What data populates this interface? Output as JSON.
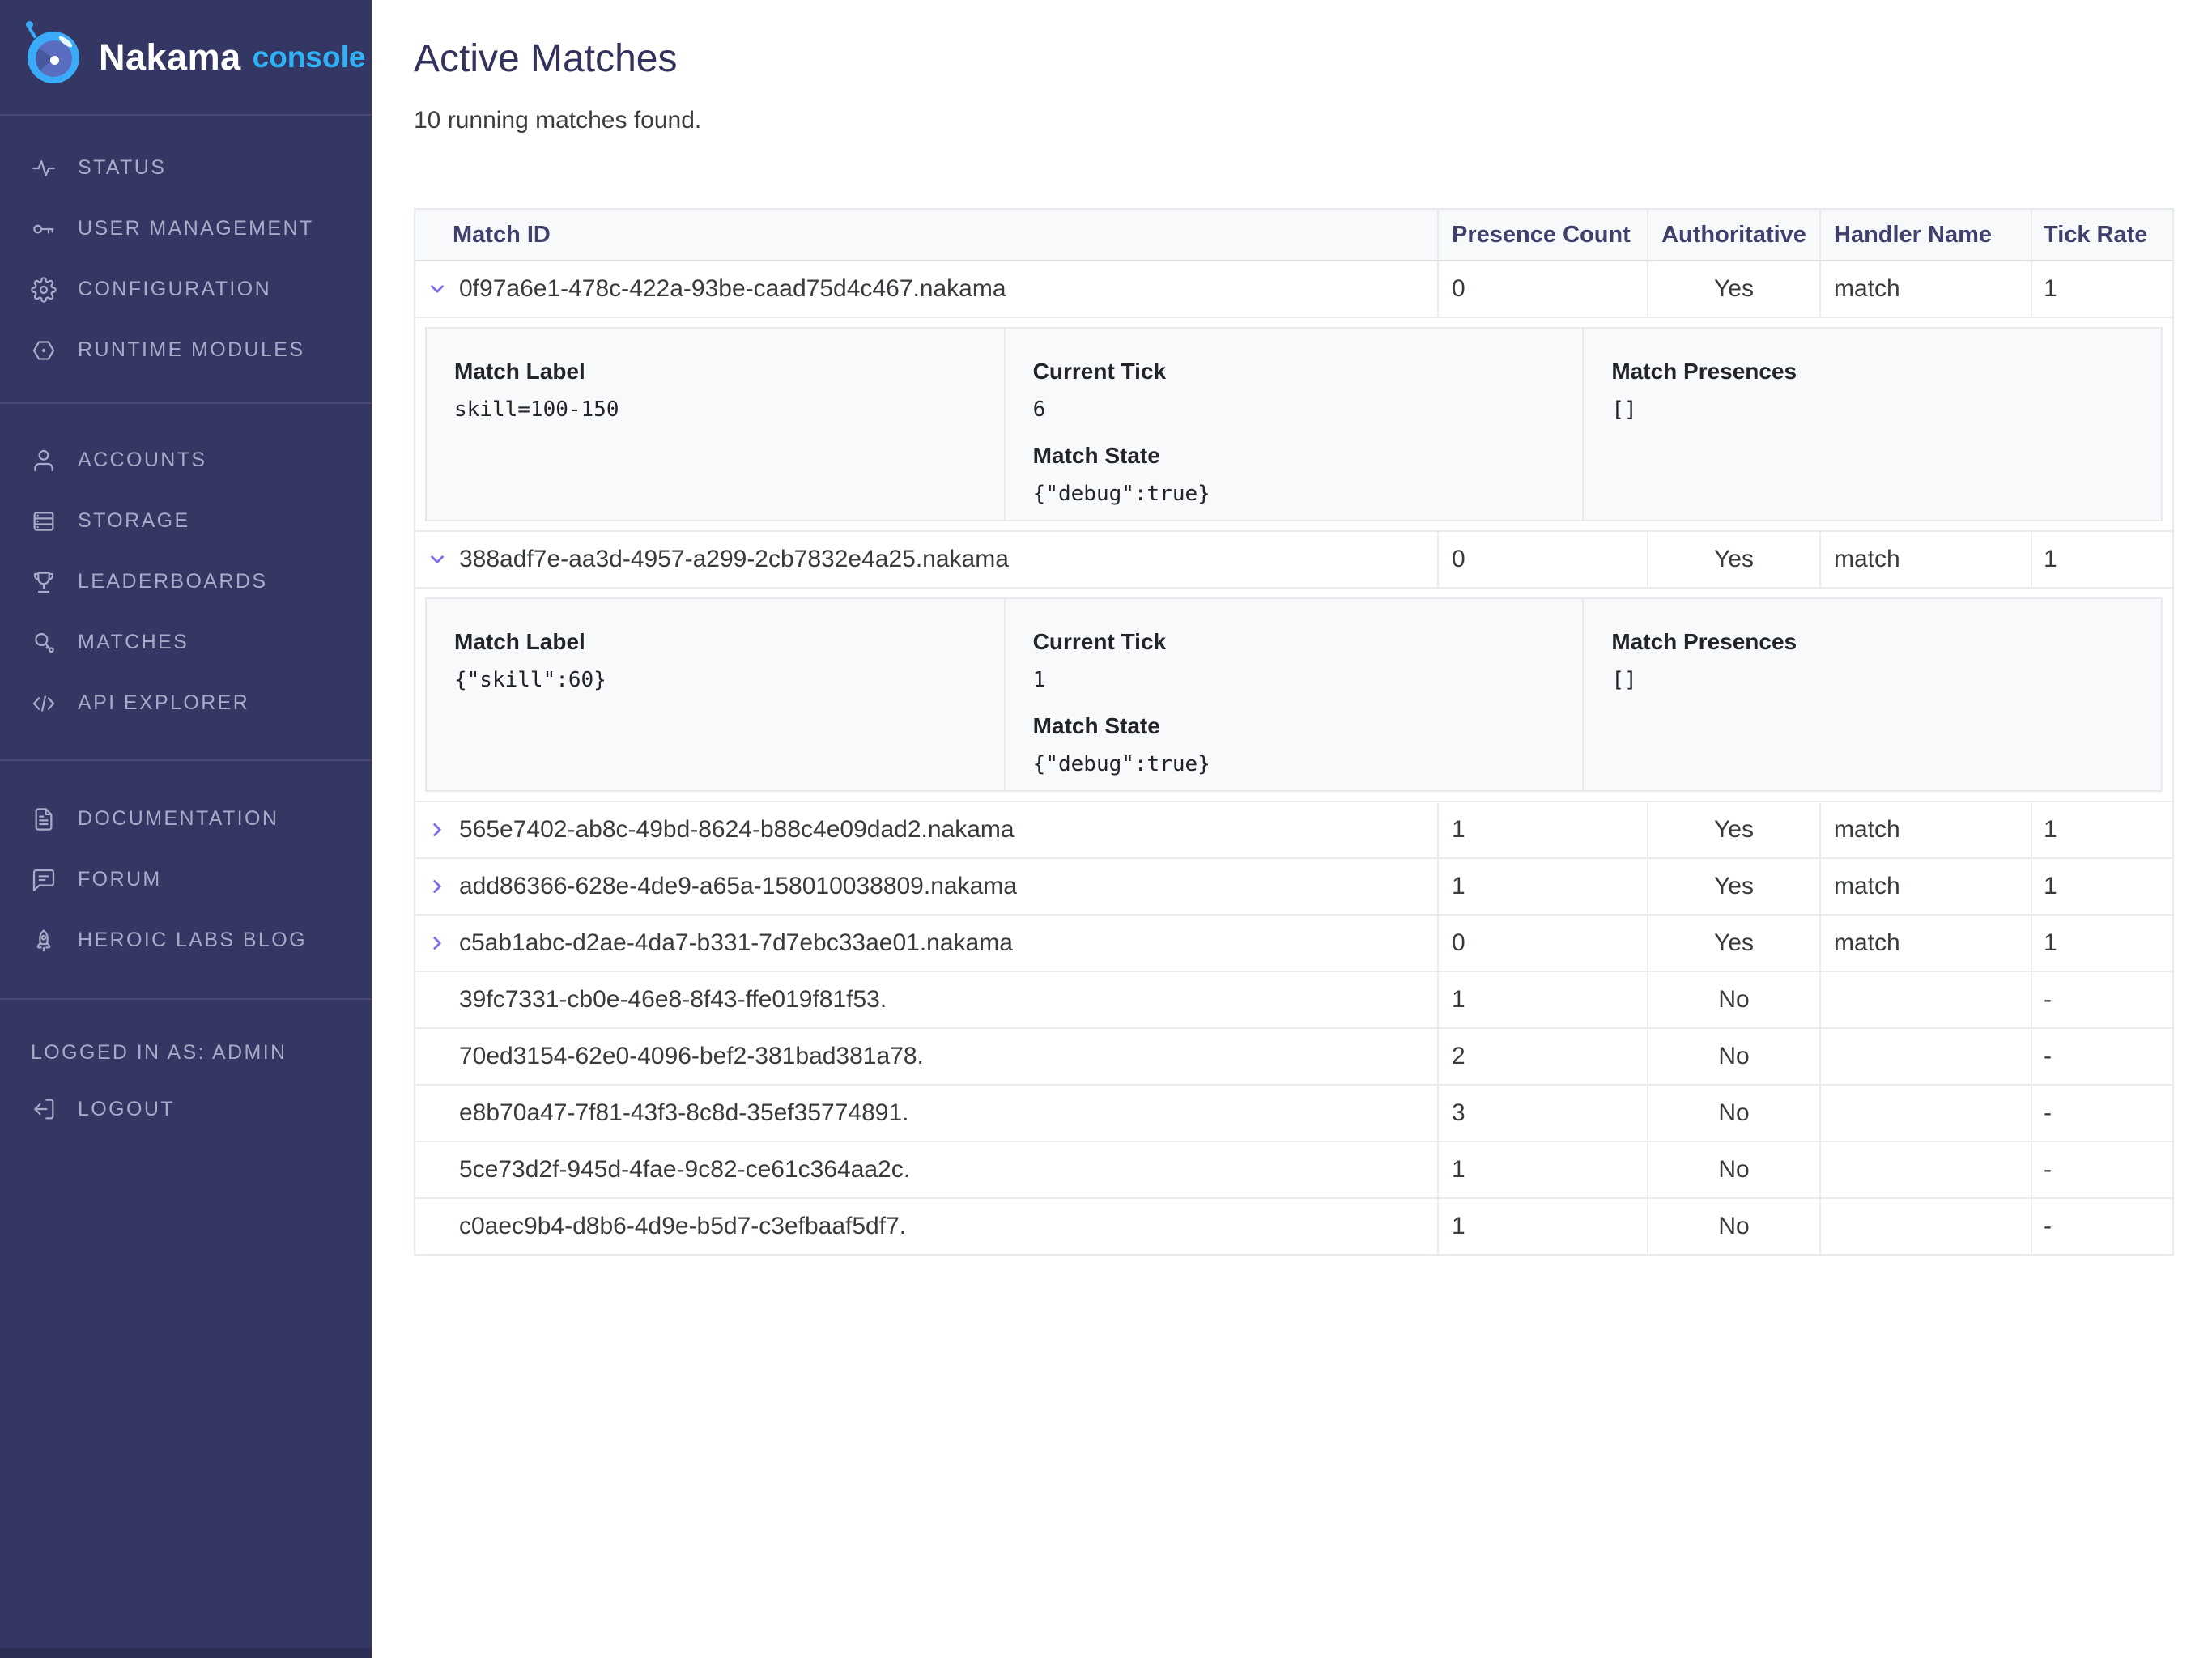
{
  "colors": {
    "sidebar_bg": "#343663",
    "accent_purple": "#7a6ded",
    "brand_blue": "#2fb3f7",
    "header_text": "#40406e",
    "logo_blue": "#3aabf8"
  },
  "sidebar": {
    "brand": {
      "name": "Nakama",
      "suffix": "console"
    },
    "sections": [
      {
        "items": [
          {
            "icon": "status-icon",
            "label": "STATUS"
          },
          {
            "icon": "key-icon",
            "label": "USER MANAGEMENT"
          },
          {
            "icon": "gear-icon",
            "label": "CONFIGURATION"
          },
          {
            "icon": "hexagon-icon",
            "label": "RUNTIME MODULES"
          }
        ]
      },
      {
        "items": [
          {
            "icon": "user-icon",
            "label": "ACCOUNTS"
          },
          {
            "icon": "server-icon",
            "label": "STORAGE"
          },
          {
            "icon": "trophy-icon",
            "label": "LEADERBOARDS"
          },
          {
            "icon": "search-icon",
            "label": "MATCHES"
          },
          {
            "icon": "code-icon",
            "label": "API EXPLORER"
          }
        ]
      },
      {
        "items": [
          {
            "icon": "document-icon",
            "label": "DOCUMENTATION"
          },
          {
            "icon": "chat-icon",
            "label": "FORUM"
          },
          {
            "icon": "rocket-icon",
            "label": "HEROIC LABS BLOG"
          }
        ]
      }
    ],
    "logged_in_label": "LOGGED IN AS: ADMIN",
    "logout": {
      "icon": "logout-icon",
      "label": "LOGOUT"
    }
  },
  "main": {
    "title": "Active Matches",
    "subtitle": "10 running matches found."
  },
  "table": {
    "headers": [
      "Match ID",
      "Presence Count",
      "Authoritative",
      "Handler Name",
      "Tick Rate"
    ],
    "detail_labels": {
      "match_label": "Match Label",
      "current_tick": "Current Tick",
      "match_state": "Match State",
      "match_presences": "Match Presences"
    },
    "rows": [
      {
        "id": "0f97a6e1-478c-422a-93be-caad75d4c467.nakama",
        "presence_count": "0",
        "authoritative": "Yes",
        "handler_name": "match",
        "tick_rate": "1",
        "chevron": "down",
        "details": {
          "match_label": "skill=100-150",
          "current_tick": "6",
          "match_state": "{\"debug\":true}",
          "match_presences": "[]"
        }
      },
      {
        "id": "388adf7e-aa3d-4957-a299-2cb7832e4a25.nakama",
        "presence_count": "0",
        "authoritative": "Yes",
        "handler_name": "match",
        "tick_rate": "1",
        "chevron": "down",
        "details": {
          "match_label": "{\"skill\":60}",
          "current_tick": "1",
          "match_state": "{\"debug\":true}",
          "match_presences": "[]"
        }
      },
      {
        "id": "565e7402-ab8c-49bd-8624-b88c4e09dad2.nakama",
        "presence_count": "1",
        "authoritative": "Yes",
        "handler_name": "match",
        "tick_rate": "1",
        "chevron": "right"
      },
      {
        "id": "add86366-628e-4de9-a65a-158010038809.nakama",
        "presence_count": "1",
        "authoritative": "Yes",
        "handler_name": "match",
        "tick_rate": "1",
        "chevron": "right"
      },
      {
        "id": "c5ab1abc-d2ae-4da7-b331-7d7ebc33ae01.nakama",
        "presence_count": "0",
        "authoritative": "Yes",
        "handler_name": "match",
        "tick_rate": "1",
        "chevron": "right"
      },
      {
        "id": "39fc7331-cb0e-46e8-8f43-ffe019f81f53.",
        "presence_count": "1",
        "authoritative": "No",
        "handler_name": "",
        "tick_rate": "-",
        "chevron": "none"
      },
      {
        "id": "70ed3154-62e0-4096-bef2-381bad381a78.",
        "presence_count": "2",
        "authoritative": "No",
        "handler_name": "",
        "tick_rate": "-",
        "chevron": "none"
      },
      {
        "id": "e8b70a47-7f81-43f3-8c8d-35ef35774891.",
        "presence_count": "3",
        "authoritative": "No",
        "handler_name": "",
        "tick_rate": "-",
        "chevron": "none"
      },
      {
        "id": "5ce73d2f-945d-4fae-9c82-ce61c364aa2c.",
        "presence_count": "1",
        "authoritative": "No",
        "handler_name": "",
        "tick_rate": "-",
        "chevron": "none"
      },
      {
        "id": "c0aec9b4-d8b6-4d9e-b5d7-c3efbaaf5df7.",
        "presence_count": "1",
        "authoritative": "No",
        "handler_name": "",
        "tick_rate": "-",
        "chevron": "none"
      }
    ]
  }
}
